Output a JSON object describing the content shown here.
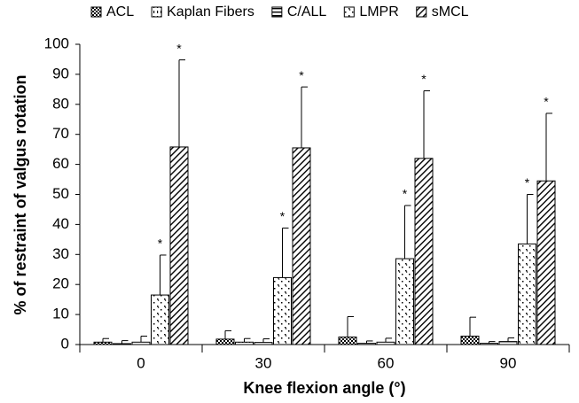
{
  "chart_data": {
    "type": "bar",
    "x_label": "Knee flexion angle (°)",
    "y_label": "% of restraint of  valgus rotation",
    "categories": [
      "0",
      "30",
      "60",
      "90"
    ],
    "ylim": [
      0,
      100
    ],
    "yticks": [
      0,
      10,
      20,
      30,
      40,
      50,
      60,
      70,
      80,
      90,
      100
    ],
    "grid": false,
    "legend": "top",
    "series": [
      {
        "name": "ACL",
        "pattern": "checker",
        "values": [
          0.8,
          1.8,
          2.5,
          2.8
        ],
        "errors": [
          1.2,
          2.8,
          6.8,
          6.3
        ]
      },
      {
        "name": "Kaplan Fibers",
        "pattern": "vertical-dash",
        "values": [
          0.3,
          0.8,
          0.4,
          0.4
        ],
        "errors": [
          1.0,
          1.2,
          0.8,
          0.6
        ]
      },
      {
        "name": "C/ALL",
        "pattern": "horizontal",
        "values": [
          0.8,
          0.7,
          0.8,
          1.0
        ],
        "errors": [
          2.0,
          1.2,
          1.3,
          1.2
        ]
      },
      {
        "name": "LMPR",
        "pattern": "dots",
        "values": [
          16.5,
          22.3,
          28.6,
          33.5
        ],
        "errors": [
          13.3,
          16.5,
          17.7,
          16.5
        ],
        "annotations": [
          "*",
          "*",
          "*",
          "*"
        ]
      },
      {
        "name": "sMCL",
        "pattern": "diagonal",
        "values": [
          65.8,
          65.5,
          62.0,
          54.5
        ],
        "errors": [
          29.0,
          20.3,
          22.5,
          22.5
        ],
        "annotations": [
          "*",
          "*",
          "*",
          "*"
        ]
      }
    ]
  }
}
